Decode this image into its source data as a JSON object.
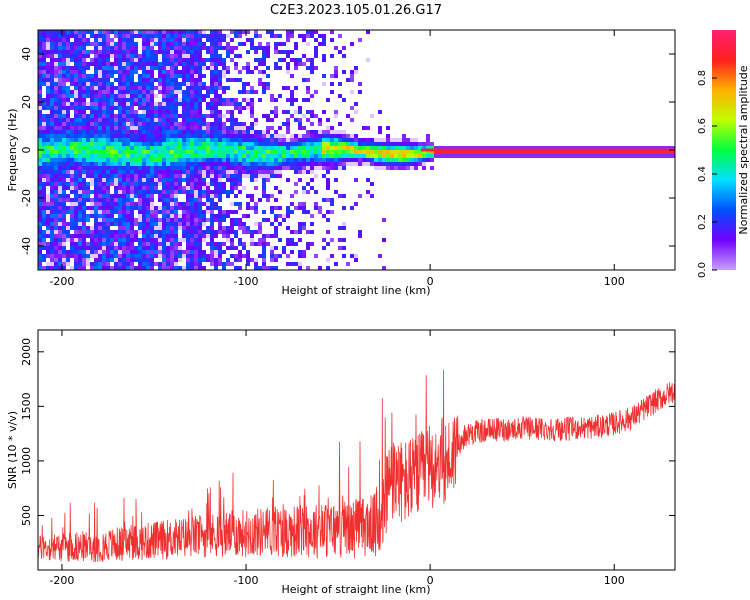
{
  "figure_title": "C2E3.2023.105.01.26.G17",
  "chart_data": [
    {
      "type": "heatmap",
      "xlabel": "Height of straight line (km)",
      "ylabel": "Frequency (Hz)",
      "xlim": [
        -213,
        133
      ],
      "ylim": [
        -50,
        50
      ],
      "x_ticks": [
        -200,
        -100,
        0,
        100
      ],
      "y_ticks": [
        -40,
        -20,
        0,
        20,
        40
      ],
      "colorbar": {
        "label": "Normalized spectral amplitude",
        "range": [
          0.0,
          1.0
        ],
        "ticks": [
          0.0,
          0.2,
          0.4,
          0.6,
          0.8
        ],
        "colormap": "gist_rainbow_r",
        "colormap_stops": [
          "#c8a0ff",
          "#7000ff",
          "#0050ff",
          "#00e0ff",
          "#00ff40",
          "#c0ff00",
          "#ffb000",
          "#ff2020",
          "#ff2070"
        ]
      },
      "grid": false
    },
    {
      "type": "line",
      "xlabel": "Height of straight line (km)",
      "ylabel": "SNR (10 * v/v)",
      "xlim": [
        -213,
        133
      ],
      "ylim": [
        0,
        2200
      ],
      "x_ticks": [
        -200,
        -100,
        0,
        100
      ],
      "y_ticks": [
        500,
        1000,
        1500,
        2000
      ],
      "line_color": "#f03030",
      "trend_x": [
        -213,
        -180,
        -150,
        -120,
        -90,
        -60,
        -40,
        -28,
        -24,
        -20,
        -15,
        -10,
        -5,
        0,
        5,
        10,
        15,
        20,
        30,
        50,
        70,
        90,
        100,
        110,
        120,
        133
      ],
      "trend_y": [
        200,
        220,
        270,
        320,
        350,
        360,
        380,
        430,
        700,
        820,
        800,
        820,
        870,
        950,
        1000,
        1000,
        1150,
        1250,
        1280,
        1300,
        1290,
        1310,
        1340,
        1400,
        1520,
        1650
      ],
      "grid": false
    }
  ]
}
